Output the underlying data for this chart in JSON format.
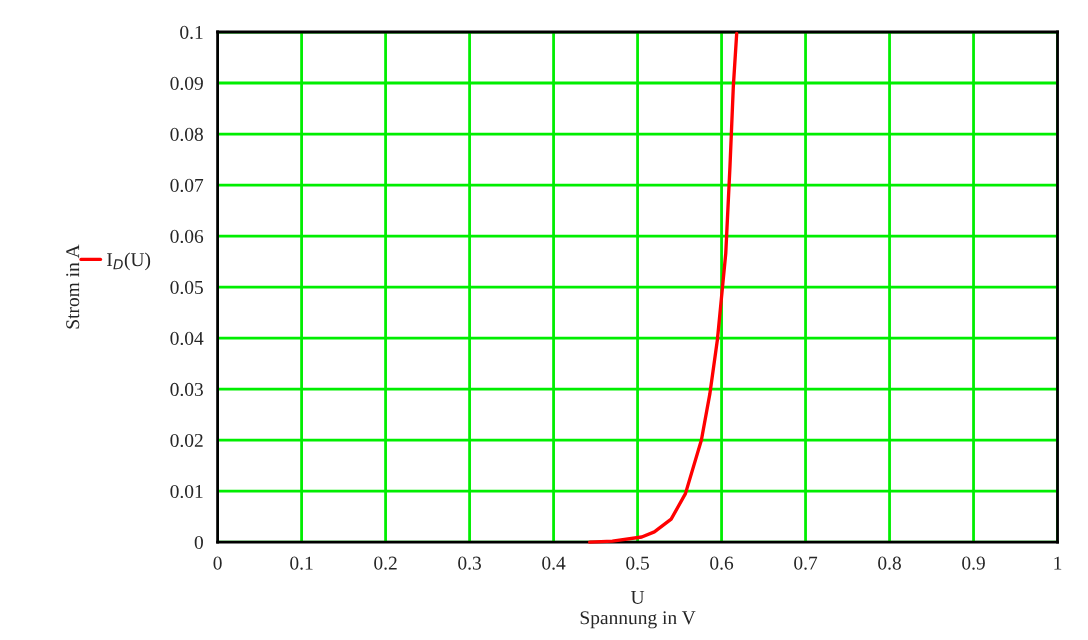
{
  "chart_data": {
    "type": "line",
    "xlabel": "U\nSpannung in V",
    "ylabel": "Strom in A",
    "series": [
      {
        "name": "I$_{D}$(U)",
        "color": "#ff0000",
        "x": [
          0.443,
          0.47,
          0.505,
          0.52,
          0.54,
          0.557,
          0.576,
          0.586,
          0.595,
          0.605,
          0.61,
          0.614,
          0.618
        ],
        "values": [
          0.0,
          0.0002,
          0.001,
          0.002,
          0.0045,
          0.0095,
          0.02,
          0.029,
          0.0396,
          0.0566,
          0.0736,
          0.0893,
          0.0997
        ]
      }
    ],
    "xlim": [
      0,
      1
    ],
    "ylim": [
      0,
      0.1
    ],
    "xticks": [
      0,
      0.1,
      0.2,
      0.3,
      0.4,
      0.5,
      0.6,
      0.7,
      0.8,
      0.9,
      1
    ],
    "yticks": [
      0,
      0.01,
      0.02,
      0.03,
      0.04,
      0.05,
      0.06,
      0.07,
      0.08,
      0.09,
      0.1
    ],
    "grid": true,
    "legend": "left",
    "marker": "none",
    "line_style": "solid"
  }
}
